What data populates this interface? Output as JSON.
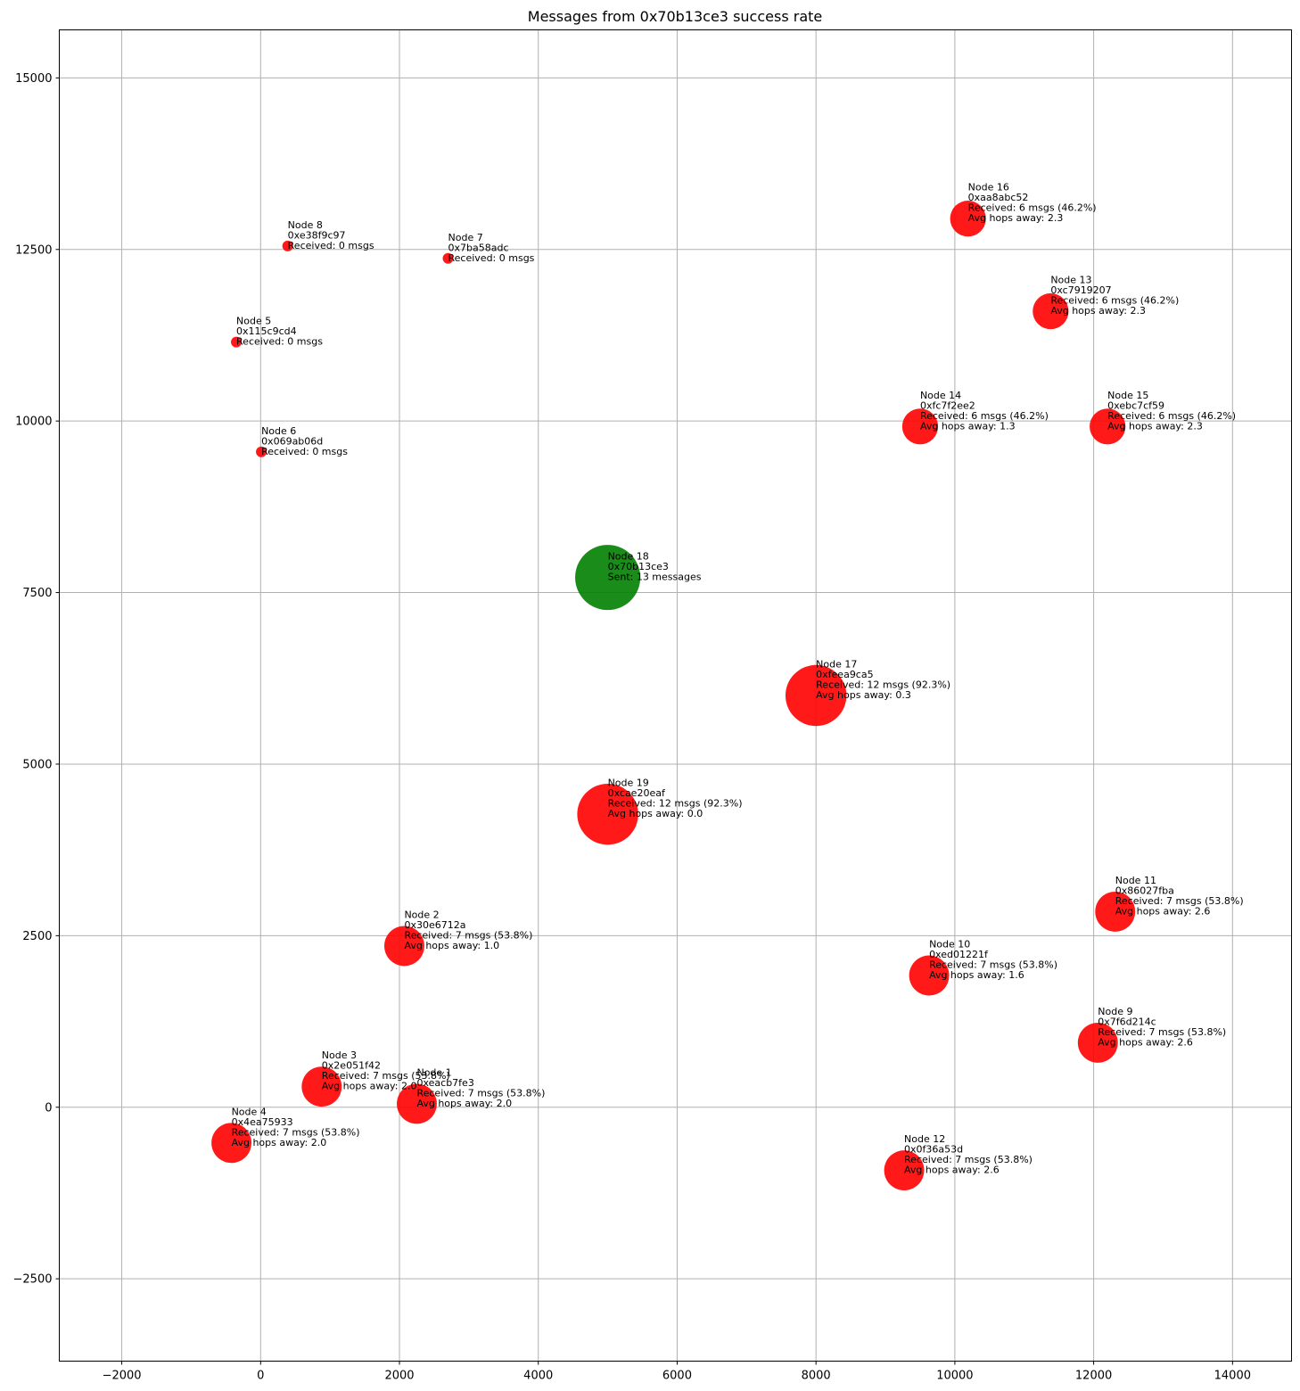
{
  "chart_data": {
    "type": "scatter",
    "title": "Messages from 0x70b13ce3 success rate",
    "xlabel": "",
    "ylabel": "",
    "xlim": [
      -2900,
      14850
    ],
    "ylim": [
      -3700,
      15700
    ],
    "xticks": [
      -2000,
      0,
      2000,
      4000,
      6000,
      8000,
      10000,
      12000,
      14000
    ],
    "yticks": [
      -2500,
      0,
      2500,
      5000,
      7500,
      10000,
      12500,
      15000
    ],
    "grid": true,
    "colors": {
      "received": "#ff0000",
      "sender": "#008000"
    },
    "nodes": [
      {
        "x": 2250,
        "y": 50,
        "size": 7,
        "role": "received",
        "lines": [
          "Node 1",
          "0xeacb7fe3",
          "Received: 7 msgs (53.8%)",
          "Avg hops away: 2.0"
        ]
      },
      {
        "x": 2070,
        "y": 2350,
        "size": 7,
        "role": "received",
        "lines": [
          "Node 2",
          "0x30e6712a",
          "Received: 7 msgs (53.8%)",
          "Avg hops away: 1.0"
        ]
      },
      {
        "x": 880,
        "y": 300,
        "size": 7,
        "role": "received",
        "lines": [
          "Node 3",
          "0x2e051f42",
          "Received: 7 msgs (53.8%)",
          "Avg hops away: 2.0"
        ]
      },
      {
        "x": -420,
        "y": -520,
        "size": 7,
        "role": "received",
        "lines": [
          "Node 4",
          "0x4ea75933",
          "Received: 7 msgs (53.8%)",
          "Avg hops away: 2.0"
        ]
      },
      {
        "x": -350,
        "y": 11150,
        "size": 0,
        "role": "received",
        "lines": [
          "Node 5",
          "0x115c9cd4",
          "Received: 0 msgs"
        ]
      },
      {
        "x": 10,
        "y": 9550,
        "size": 0,
        "role": "received",
        "lines": [
          "Node 6",
          "0x069ab06d",
          "Received: 0 msgs"
        ]
      },
      {
        "x": 2700,
        "y": 12370,
        "size": 0,
        "role": "received",
        "lines": [
          "Node 7",
          "0x7ba58adc",
          "Received: 0 msgs"
        ]
      },
      {
        "x": 390,
        "y": 12550,
        "size": 0,
        "role": "received",
        "lines": [
          "Node 8",
          "0xe38f9c97",
          "Received: 0 msgs"
        ]
      },
      {
        "x": 12060,
        "y": 940,
        "size": 7,
        "role": "received",
        "lines": [
          "Node 9",
          "0x7f6d214c",
          "Received: 7 msgs (53.8%)",
          "Avg hops away: 2.6"
        ]
      },
      {
        "x": 9630,
        "y": 1920,
        "size": 7,
        "role": "received",
        "lines": [
          "Node 10",
          "0xed01221f",
          "Received: 7 msgs (53.8%)",
          "Avg hops away: 1.6"
        ]
      },
      {
        "x": 12310,
        "y": 2850,
        "size": 7,
        "role": "received",
        "lines": [
          "Node 11",
          "0x86027fba",
          "Received: 7 msgs (53.8%)",
          "Avg hops away: 2.6"
        ]
      },
      {
        "x": 9270,
        "y": -920,
        "size": 7,
        "role": "received",
        "lines": [
          "Node 12",
          "0x0f36a53d",
          "Received: 7 msgs (53.8%)",
          "Avg hops away: 2.6"
        ]
      },
      {
        "x": 11380,
        "y": 11600,
        "size": 6,
        "role": "received",
        "lines": [
          "Node 13",
          "0xc7919207",
          "Received: 6 msgs (46.2%)",
          "Avg hops away: 2.3"
        ]
      },
      {
        "x": 9500,
        "y": 9920,
        "size": 6,
        "role": "received",
        "lines": [
          "Node 14",
          "0xfc7f2ee2",
          "Received: 6 msgs (46.2%)",
          "Avg hops away: 1.3"
        ]
      },
      {
        "x": 12200,
        "y": 9920,
        "size": 6,
        "role": "received",
        "lines": [
          "Node 15",
          "0xebc7cf59",
          "Received: 6 msgs (46.2%)",
          "Avg hops away: 2.3"
        ]
      },
      {
        "x": 10190,
        "y": 12950,
        "size": 6,
        "role": "received",
        "lines": [
          "Node 16",
          "0xaa8abc52",
          "Received: 6 msgs (46.2%)",
          "Avg hops away: 2.3"
        ]
      },
      {
        "x": 8000,
        "y": 6000,
        "size": 12,
        "role": "received",
        "lines": [
          "Node 17",
          "0xfeea9ca5",
          "Received: 12 msgs (92.3%)",
          "Avg hops away: 0.3"
        ]
      },
      {
        "x": 5000,
        "y": 7720,
        "size": 13,
        "role": "sender",
        "lines": [
          "Node 18",
          "0x70b13ce3",
          "Sent: 13 messages"
        ]
      },
      {
        "x": 5000,
        "y": 4270,
        "size": 12,
        "role": "received",
        "lines": [
          "Node 19",
          "0xcae20eaf",
          "Received: 12 msgs (92.3%)",
          "Avg hops away: 0.0"
        ]
      }
    ]
  }
}
